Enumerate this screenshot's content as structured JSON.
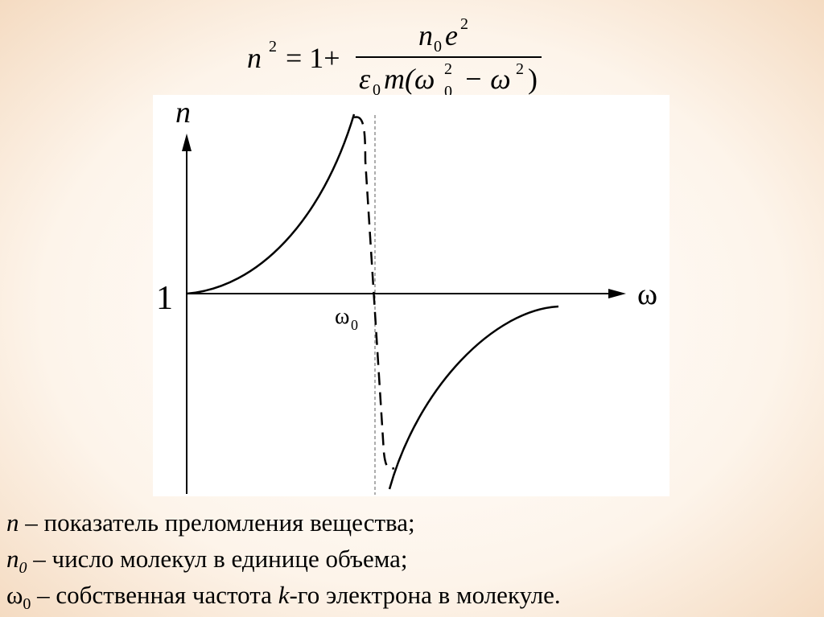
{
  "formula": {
    "lhs": [
      "n",
      "2"
    ],
    "rhs_start": "= 1+",
    "numerator": [
      "n",
      "0",
      "e",
      "2"
    ],
    "denominator": [
      "ε",
      "0",
      "m(ω",
      "0",
      "2",
      "− ω",
      "2",
      ")"
    ]
  },
  "graph": {
    "y_label": "n",
    "x_label": "ω",
    "y_mark": "1",
    "x_mark": [
      "ω",
      "0"
    ]
  },
  "notes": [
    [
      "n",
      " – показатель преломления вещества;"
    ],
    [
      "n",
      "0",
      " – число молекул в единице объема;"
    ],
    [
      "ω",
      "0",
      " – собственная частота ",
      "k",
      "-го электрона в молекуле."
    ]
  ]
}
